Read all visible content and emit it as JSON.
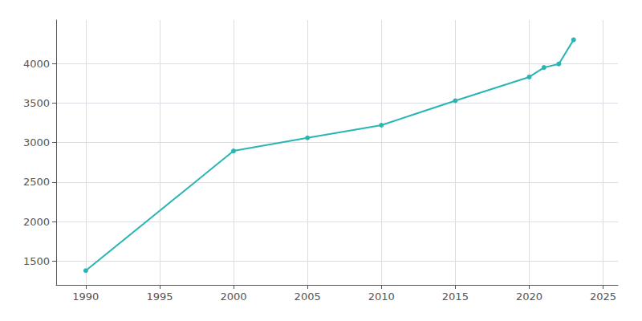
{
  "chart_data": {
    "type": "line",
    "x": [
      1990,
      2000,
      2005,
      2010,
      2015,
      2020,
      2021,
      2022,
      2023
    ],
    "values": [
      1380,
      2895,
      3060,
      3220,
      3530,
      3830,
      3950,
      3995,
      4300
    ],
    "color": "#2ab5b5",
    "marker": "circle",
    "xlim": [
      1988,
      2026
    ],
    "ylim": [
      1200,
      4550
    ],
    "xticks": [
      1990,
      1995,
      2000,
      2005,
      2010,
      2015,
      2020,
      2025
    ],
    "yticks": [
      1500,
      2000,
      2500,
      3000,
      3500,
      4000
    ],
    "grid": true
  }
}
